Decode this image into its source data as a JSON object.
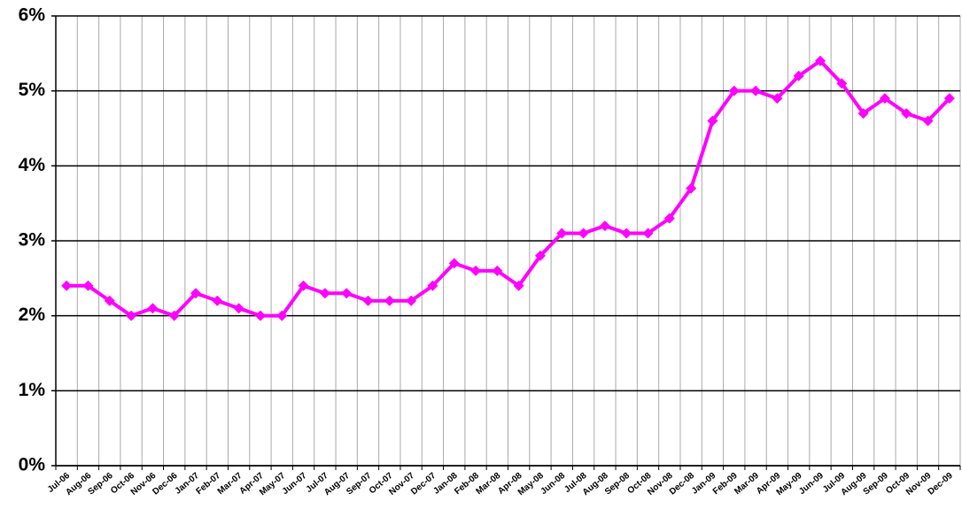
{
  "chart_data": {
    "type": "line",
    "categories": [
      "Jul-06",
      "Aug-06",
      "Sep-06",
      "Oct-06",
      "Nov-06",
      "Dec-06",
      "Jan-07",
      "Feb-07",
      "Mar-07",
      "Apr-07",
      "May-07",
      "Jun-07",
      "Jul-07",
      "Aug-07",
      "Sep-07",
      "Oct-07",
      "Nov-07",
      "Dec-07",
      "Jan-08",
      "Feb-08",
      "Mar-08",
      "Apr-08",
      "May-08",
      "Jun-08",
      "Jul-08",
      "Aug-08",
      "Sep-08",
      "Oct-08",
      "Nov-08",
      "Dec-08",
      "Jan-09",
      "Feb-09",
      "Mar-09",
      "Apr-09",
      "May-09",
      "Jun-09",
      "Jul-09",
      "Aug-09",
      "Sep-09",
      "Oct-09",
      "Nov-09",
      "Dec-09"
    ],
    "values": [
      2.4,
      2.4,
      2.2,
      2.0,
      2.1,
      2.0,
      2.3,
      2.2,
      2.1,
      2.0,
      2.0,
      2.4,
      2.3,
      2.3,
      2.2,
      2.2,
      2.2,
      2.4,
      2.7,
      2.6,
      2.6,
      2.4,
      2.8,
      3.1,
      3.1,
      3.2,
      3.1,
      3.1,
      3.3,
      3.7,
      4.6,
      5.0,
      5.0,
      4.9,
      5.2,
      5.4,
      5.1,
      4.7,
      4.9,
      4.7,
      4.6,
      4.9
    ],
    "color": "#ff00ff",
    "ylim": [
      0,
      6
    ],
    "yticks": [
      {
        "value": 0,
        "label": "0%"
      },
      {
        "value": 1,
        "label": "1%"
      },
      {
        "value": 2,
        "label": "2%"
      },
      {
        "value": 3,
        "label": "3%"
      },
      {
        "value": 4,
        "label": "4%"
      },
      {
        "value": 5,
        "label": "5%"
      },
      {
        "value": 6,
        "label": "6%"
      }
    ],
    "grid": true
  }
}
